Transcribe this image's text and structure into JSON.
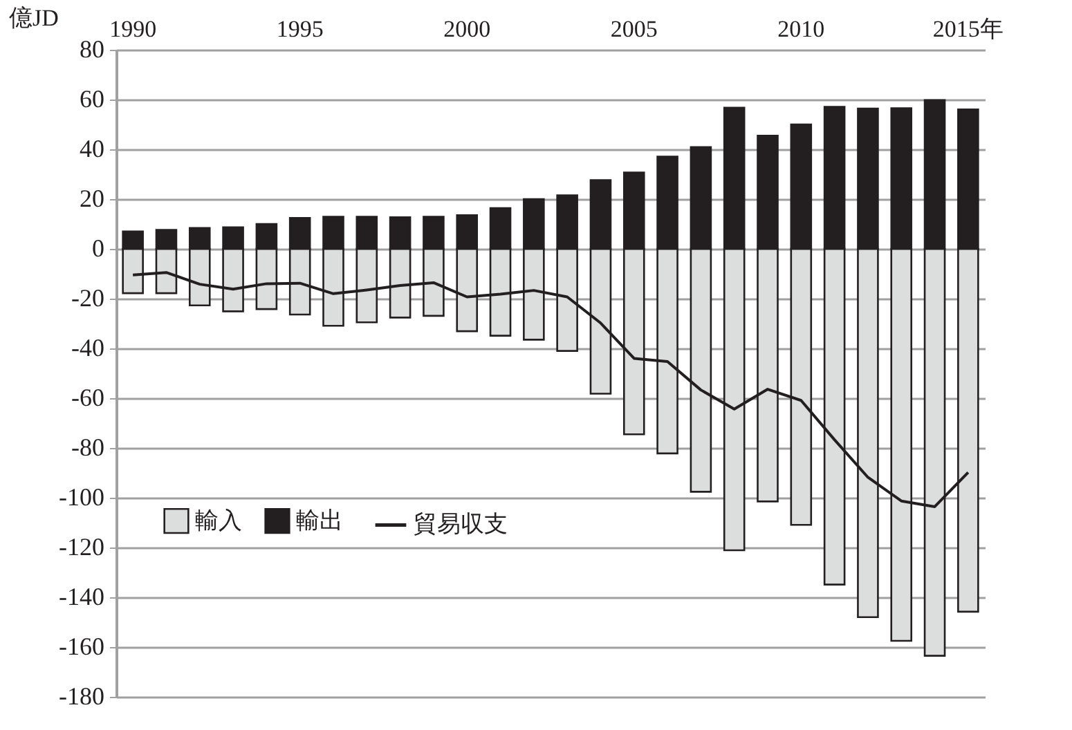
{
  "chart_data": {
    "type": "bar",
    "ylabel": "億JD",
    "categories": [
      "1990",
      null,
      null,
      null,
      null,
      "1995",
      null,
      null,
      null,
      null,
      "2000",
      null,
      null,
      null,
      null,
      "2005",
      null,
      null,
      null,
      null,
      "2010",
      null,
      null,
      null,
      null,
      "2015年"
    ],
    "series": [
      {
        "name": "輸入",
        "color": "#dcdddd",
        "values": [
          -17.8,
          -17.8,
          -22.7,
          -25.1,
          -24.2,
          -26.4,
          -30.9,
          -29.5,
          -27.6,
          -26.9,
          -33.1,
          -34.9,
          -36.5,
          -41,
          -58.2,
          -74.5,
          -82.2,
          -97.6,
          -121.1,
          -101.5,
          -110.9,
          -134.9,
          -148,
          -157.5,
          -163.5,
          -145.8
        ]
      },
      {
        "name": "輸出",
        "color": "#231f20",
        "values": [
          7,
          7.6,
          8.4,
          8.7,
          10,
          12.4,
          12.9,
          12.9,
          12.7,
          12.9,
          13.5,
          16.4,
          20,
          21.5,
          27.6,
          30.7,
          37.1,
          40.9,
          56.7,
          45.5,
          50,
          57.1,
          56.4,
          56.5,
          59.8,
          56
        ]
      },
      {
        "name": "貿易収支",
        "type": "line",
        "color": "#231f20",
        "values": [
          -10.5,
          -9.5,
          -14.2,
          -16.2,
          -14,
          -13.8,
          -18,
          -16.5,
          -14.7,
          -13.6,
          -19.3,
          -18.2,
          -16.7,
          -19.3,
          -29.8,
          -44,
          -45.3,
          -56.7,
          -64.4,
          -56.4,
          -60.9,
          -76.7,
          -91.8,
          -101.3,
          -103.6,
          -89.8
        ]
      }
    ],
    "stacked": true,
    "ylim": [
      -180,
      80
    ],
    "yticks": [
      -180,
      -160,
      -140,
      -120,
      -100,
      -80,
      -60,
      -40,
      -20,
      0,
      20,
      40,
      60,
      80
    ],
    "grid": "y",
    "legend": "bottom left"
  }
}
